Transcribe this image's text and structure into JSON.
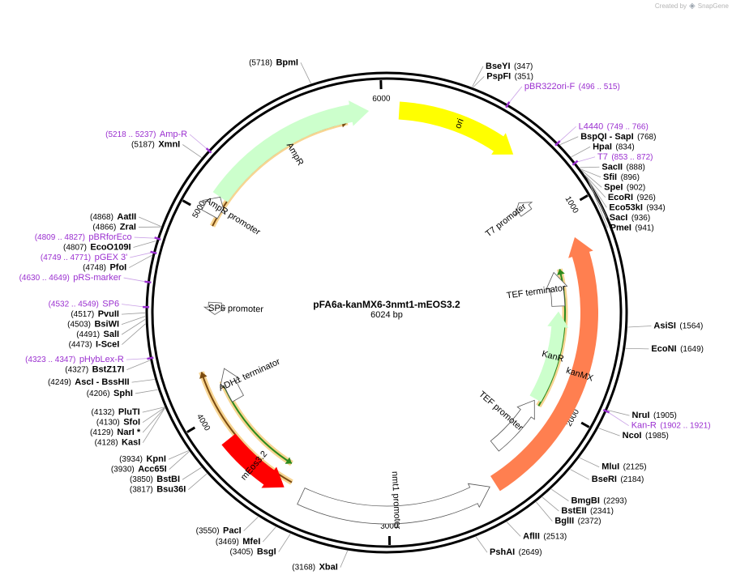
{
  "credit": {
    "text": "Created by",
    "brand": "SnapGene"
  },
  "plasmid": {
    "name": "pFA6a-kanMX6-3nmt1-mEOS3.2",
    "length_label": "6024 bp",
    "length": 6024
  },
  "ticks": [
    {
      "pos": 1000,
      "label": "1000"
    },
    {
      "pos": 2000,
      "label": "2000"
    },
    {
      "pos": 3000,
      "label": "3000"
    },
    {
      "pos": 4000,
      "label": "4000"
    },
    {
      "pos": 5000,
      "label": "5000"
    },
    {
      "pos": 6000,
      "label": "6000"
    }
  ],
  "features": [
    {
      "id": "ori",
      "label": "ori",
      "start": 59,
      "end": 647,
      "dir": 1,
      "color": "#ffff00",
      "lane": 3
    },
    {
      "id": "kanmx",
      "label": "kanMX",
      "start": 1140,
      "end": 2470,
      "dir": -1,
      "color": "#ff7f50",
      "lane": 3
    },
    {
      "id": "nmt1-promoter",
      "label": "nmt1 promoter",
      "start": 2500,
      "end": 3430,
      "dir": -1,
      "color": "#ffffff",
      "lane": 3
    },
    {
      "id": "meos32",
      "label": "mEos3.2",
      "start": 3520,
      "end": 3870,
      "dir": -1,
      "color": "#ff0000",
      "lane": 3
    },
    {
      "id": "ampr",
      "label": "AmpR",
      "start": 5100,
      "end": 5940,
      "dir": 1,
      "color": "#ccffcc",
      "lane": 3
    },
    {
      "id": "ampr-promoter",
      "label": "AmpR promoter",
      "start": 5005,
      "end": 5100,
      "dir": 1,
      "color": "#ffffff",
      "lane": 3
    },
    {
      "id": "kanr",
      "label": "KanR",
      "start": 1500,
      "end": 2010,
      "dir": -1,
      "color": "#ccffcc",
      "lane": 2
    },
    {
      "id": "tef-terminator",
      "label": "TEF terminator",
      "start": 1280,
      "end": 1470,
      "dir": -1,
      "color": "#ffffff",
      "lane": 2
    },
    {
      "id": "tef-promoter",
      "label": "TEF promoter",
      "start": 2020,
      "end": 2360,
      "dir": -1,
      "color": "#ffffff",
      "lane": 2
    },
    {
      "id": "t7-promoter",
      "label": "T7 promoter",
      "start": 866,
      "end": 885,
      "dir": -1,
      "color": "#ffffff",
      "lane": 2
    },
    {
      "id": "sp6-promoter",
      "label": "SP6 promoter",
      "start": 4532,
      "end": 4549,
      "dir": -1,
      "color": "#ffffff",
      "lane": 2
    },
    {
      "id": "adh1-terminator",
      "label": "ADH1 terminator",
      "start": 4015,
      "end": 4200,
      "dir": 1,
      "color": "#ffffff",
      "lane": 2
    }
  ],
  "orfs": [
    {
      "id": "orf-kanmx",
      "start": 1270,
      "end": 2035,
      "dir": -1
    },
    {
      "id": "orf-meos",
      "start": 3550,
      "end": 4140,
      "dir": -1
    },
    {
      "id": "orf-adh",
      "start": 3500,
      "end": 4220,
      "dir": 1
    },
    {
      "id": "orf-ampr",
      "start": 4960,
      "end": 5830,
      "dir": 1
    }
  ],
  "primers": [
    {
      "name": "pBR322ori-F",
      "range": "(496 .. 515)",
      "pos": 505
    },
    {
      "name": "L4440",
      "range": "(749 .. 766)",
      "pos": 757
    },
    {
      "name": "T7",
      "range": "(853 .. 872)",
      "pos": 862
    },
    {
      "name": "Kan-R",
      "range": "(1902 .. 1921)",
      "pos": 1911
    },
    {
      "name": "pHybLex-R",
      "range": "(4323 .. 4347)",
      "pos": 4335
    },
    {
      "name": "SP6",
      "range": "(4532 .. 4549)",
      "pos": 4540
    },
    {
      "name": "pRS-marker",
      "range": "(4630 .. 4649)",
      "pos": 4640
    },
    {
      "name": "pGEX 3'",
      "range": "(4749 .. 4771)",
      "pos": 4760
    },
    {
      "name": "pBRforEco",
      "range": "(4809 .. 4827)",
      "pos": 4818
    },
    {
      "name": "Amp-R",
      "range": "(5218 .. 5237)",
      "pos": 5227
    }
  ],
  "sites_right": [
    {
      "name": "BseYI",
      "pos_label": "(347)",
      "pos": 347
    },
    {
      "name": "PspFI",
      "pos_label": "(351)",
      "pos": 351
    },
    {
      "name": "BspQI",
      "pos_label": "(768)",
      "pos": 768,
      "alias": "SapI"
    },
    {
      "name": "HpaI",
      "pos_label": "(834)",
      "pos": 834
    },
    {
      "name": "SacII",
      "pos_label": "(888)",
      "pos": 888
    },
    {
      "name": "SfiI",
      "pos_label": "(896)",
      "pos": 896
    },
    {
      "name": "SpeI",
      "pos_label": "(902)",
      "pos": 902
    },
    {
      "name": "EcoRI",
      "pos_label": "(926)",
      "pos": 926
    },
    {
      "name": "Eco53kI",
      "pos_label": "(934)",
      "pos": 934
    },
    {
      "name": "SacI",
      "pos_label": "(936)",
      "pos": 936
    },
    {
      "name": "PmeI",
      "pos_label": "(941)",
      "pos": 941
    },
    {
      "name": "AsiSI",
      "pos_label": "(1564)",
      "pos": 1564
    },
    {
      "name": "EcoNI",
      "pos_label": "(1649)",
      "pos": 1649
    },
    {
      "name": "NruI",
      "pos_label": "(1905)",
      "pos": 1905
    },
    {
      "name": "NcoI",
      "pos_label": "(1985)",
      "pos": 1985
    },
    {
      "name": "MluI",
      "pos_label": "(2125)",
      "pos": 2125
    },
    {
      "name": "BseRI",
      "pos_label": "(2184)",
      "pos": 2184
    },
    {
      "name": "BmgBI",
      "pos_label": "(2293)",
      "pos": 2293
    },
    {
      "name": "BstEII",
      "pos_label": "(2341)",
      "pos": 2341
    },
    {
      "name": "BglII",
      "pos_label": "(2372)",
      "pos": 2372
    },
    {
      "name": "AflII",
      "pos_label": "(2513)",
      "pos": 2513
    },
    {
      "name": "PshAI",
      "pos_label": "(2649)",
      "pos": 2649
    }
  ],
  "sites_left": [
    {
      "name": "BpmI",
      "pos_label": "(5718)",
      "pos": 5718
    },
    {
      "name": "XmnI",
      "pos_label": "(5187)",
      "pos": 5187
    },
    {
      "name": "AatII",
      "pos_label": "(4868)",
      "pos": 4868
    },
    {
      "name": "ZraI",
      "pos_label": "(4866)",
      "pos": 4866
    },
    {
      "name": "EcoO109I",
      "pos_label": "(4807)",
      "pos": 4807
    },
    {
      "name": "PfoI",
      "pos_label": "(4748)",
      "pos": 4748
    },
    {
      "name": "PvuII",
      "pos_label": "(4517)",
      "pos": 4517
    },
    {
      "name": "BsiWI",
      "pos_label": "(4503)",
      "pos": 4503
    },
    {
      "name": "SalI",
      "pos_label": "(4491)",
      "pos": 4491
    },
    {
      "name": "I-SceI",
      "pos_label": "(4473)",
      "pos": 4473
    },
    {
      "name": "BstZ17I",
      "pos_label": "(4327)",
      "pos": 4327
    },
    {
      "name": "AscI",
      "pos_label": "(4249)",
      "pos": 4249,
      "alias": "BssHII"
    },
    {
      "name": "SphI",
      "pos_label": "(4206)",
      "pos": 4206
    },
    {
      "name": "PluTI",
      "pos_label": "(4132)",
      "pos": 4132
    },
    {
      "name": "SfoI",
      "pos_label": "(4130)",
      "pos": 4130
    },
    {
      "name": "NarI *",
      "pos_label": "(4129)",
      "pos": 4129
    },
    {
      "name": "KasI",
      "pos_label": "(4128)",
      "pos": 4128
    },
    {
      "name": "KpnI",
      "pos_label": "(3934)",
      "pos": 3934
    },
    {
      "name": "Acc65I",
      "pos_label": "(3930)",
      "pos": 3930
    },
    {
      "name": "BstBI",
      "pos_label": "(3850)",
      "pos": 3850
    },
    {
      "name": "Bsu36I",
      "pos_label": "(3817)",
      "pos": 3817
    },
    {
      "name": "PacI",
      "pos_label": "(3550)",
      "pos": 3550
    },
    {
      "name": "MfeI",
      "pos_label": "(3469)",
      "pos": 3469
    },
    {
      "name": "BsgI",
      "pos_label": "(3405)",
      "pos": 3405
    },
    {
      "name": "XbaI",
      "pos_label": "(3168)",
      "pos": 3168
    }
  ]
}
